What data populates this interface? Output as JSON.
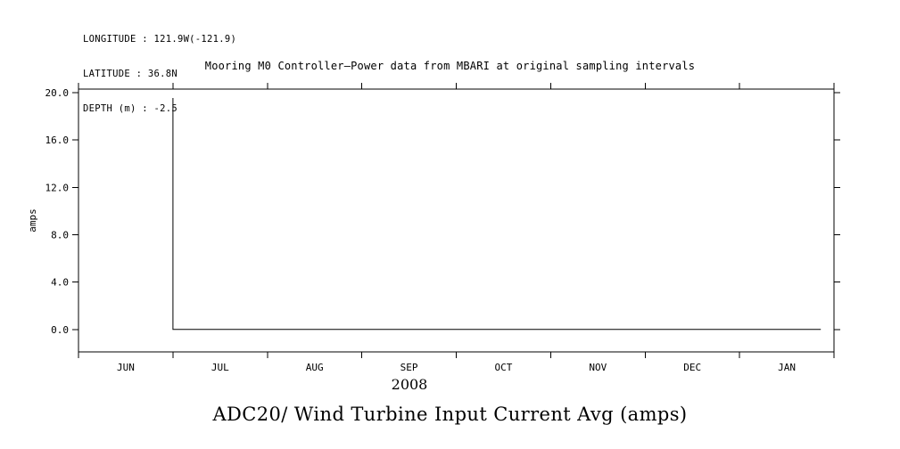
{
  "header": {
    "longitude": "LONGITUDE : 121.9W(-121.9)",
    "latitude": "LATITUDE : 36.8N",
    "depth": "DEPTH (m) : -2.5"
  },
  "chart_data": {
    "type": "line",
    "title": "Mooring M0 Controller—Power data from MBARI at original sampling intervals",
    "bottom_title": "ADC20/ Wind Turbine Input Current Avg (amps)",
    "ylabel": "amps",
    "xlabel_year": "2008",
    "x_tick_labels": [
      "JUN",
      "JUL",
      "AUG",
      "SEP",
      "OCT",
      "NOV",
      "DEC",
      "JAN"
    ],
    "y_ticks": [
      0.0,
      4.0,
      8.0,
      12.0,
      16.0,
      20.0
    ],
    "ylim": [
      -1.9,
      20.3
    ],
    "xlim_months": [
      0,
      8
    ],
    "grid": false,
    "legend": "none",
    "line_color": "#000000",
    "series": [
      {
        "name": "wind-turbine-input-current-avg",
        "points": [
          [
            1.0,
            19.55
          ],
          [
            1.0,
            0.0
          ],
          [
            7.86,
            0.0
          ]
        ]
      }
    ]
  }
}
